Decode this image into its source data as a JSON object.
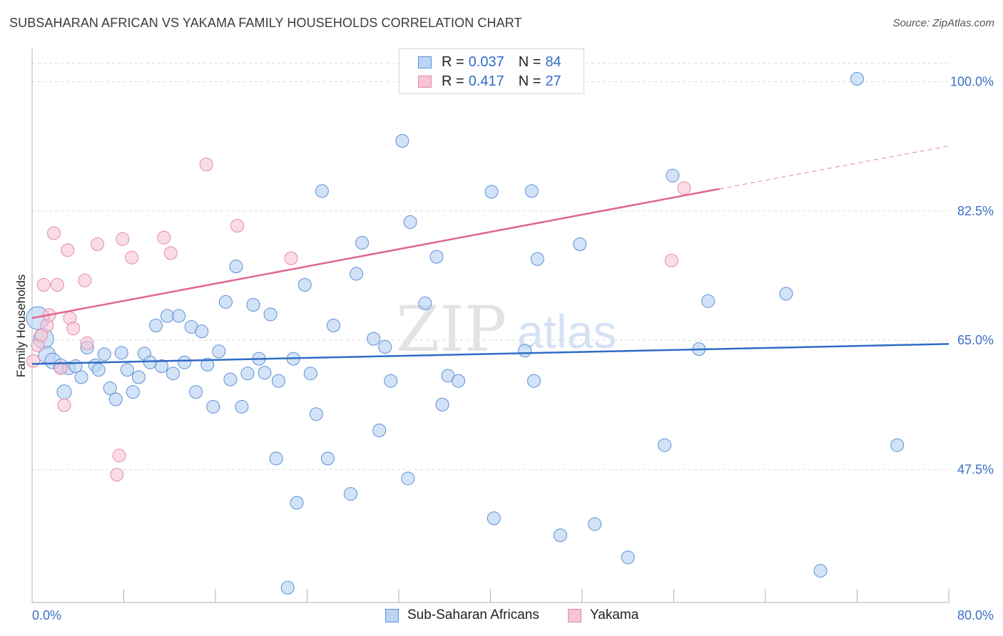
{
  "title": "SUBSAHARAN AFRICAN VS YAKAMA FAMILY HOUSEHOLDS CORRELATION CHART",
  "source": "Source: ZipAtlas.com",
  "watermark": {
    "zip": "ZIP",
    "atlas": "atlas"
  },
  "legend": {
    "r_label": "R =",
    "n_label": "N =",
    "blue": {
      "r": "0.037",
      "n": "84"
    },
    "pink": {
      "r": "0.417",
      "n": "27"
    }
  },
  "colors": {
    "blue": "#5b8fd6",
    "blue_fill": "#bcd4f3",
    "blue_line": "#2f6cc5",
    "pink": "#e48aa9",
    "pink_fill": "#f7c4d4",
    "pink_line": "#e0668f",
    "tick": "#3b6fc4",
    "grid": "#dcdcdc"
  },
  "chart_data": {
    "type": "scatter",
    "title": "SUBSAHARAN AFRICAN VS YAKAMA FAMILY HOUSEHOLDS CORRELATION CHART",
    "xlabel": "",
    "ylabel": "Family Households",
    "xlim": [
      0,
      80
    ],
    "ylim": [
      29.5,
      104.5
    ],
    "x_tick_labels": [
      "0.0%",
      "80.0%"
    ],
    "y_ticks": [
      47.5,
      65.0,
      82.5,
      100.0
    ],
    "y_tick_labels": [
      "47.5%",
      "65.0%",
      "82.5%",
      "100.0%"
    ],
    "series": [
      {
        "name": "Sub-Saharan Africans",
        "color": "blue",
        "trend": {
          "x": [
            0,
            80
          ],
          "y": [
            61.8,
            64.5
          ]
        },
        "points": [
          {
            "x": 0.5,
            "y": 68.0,
            "s": 16
          },
          {
            "x": 1.0,
            "y": 65.2,
            "s": 14
          },
          {
            "x": 1.3,
            "y": 63.0,
            "s": 12
          },
          {
            "x": 1.8,
            "y": 62.2,
            "s": 11
          },
          {
            "x": 2.5,
            "y": 61.5,
            "s": 10
          },
          {
            "x": 2.8,
            "y": 58.0,
            "s": 10
          },
          {
            "x": 3.2,
            "y": 61.2,
            "s": 9
          },
          {
            "x": 3.8,
            "y": 61.5,
            "s": 9
          },
          {
            "x": 4.3,
            "y": 60.0,
            "s": 9
          },
          {
            "x": 4.8,
            "y": 64.0,
            "s": 9
          },
          {
            "x": 5.5,
            "y": 61.6,
            "s": 9
          },
          {
            "x": 5.8,
            "y": 61.0,
            "s": 9
          },
          {
            "x": 6.3,
            "y": 63.1,
            "s": 9
          },
          {
            "x": 6.8,
            "y": 58.5,
            "s": 9
          },
          {
            "x": 7.3,
            "y": 57.0,
            "s": 9
          },
          {
            "x": 7.8,
            "y": 63.3,
            "s": 9
          },
          {
            "x": 8.3,
            "y": 61.0,
            "s": 9
          },
          {
            "x": 8.8,
            "y": 58.0,
            "s": 9
          },
          {
            "x": 9.3,
            "y": 60.0,
            "s": 9
          },
          {
            "x": 9.8,
            "y": 63.2,
            "s": 9
          },
          {
            "x": 10.3,
            "y": 62.0,
            "s": 9
          },
          {
            "x": 10.8,
            "y": 67.0,
            "s": 9
          },
          {
            "x": 11.3,
            "y": 61.5,
            "s": 9
          },
          {
            "x": 11.8,
            "y": 68.3,
            "s": 9
          },
          {
            "x": 12.3,
            "y": 60.5,
            "s": 9
          },
          {
            "x": 12.8,
            "y": 68.3,
            "s": 9
          },
          {
            "x": 13.3,
            "y": 62.0,
            "s": 9
          },
          {
            "x": 13.9,
            "y": 66.8,
            "s": 9
          },
          {
            "x": 14.3,
            "y": 58.0,
            "s": 9
          },
          {
            "x": 14.8,
            "y": 66.2,
            "s": 9
          },
          {
            "x": 15.3,
            "y": 61.7,
            "s": 9
          },
          {
            "x": 15.8,
            "y": 56.0,
            "s": 9
          },
          {
            "x": 16.3,
            "y": 63.5,
            "s": 9
          },
          {
            "x": 16.9,
            "y": 70.2,
            "s": 9
          },
          {
            "x": 17.3,
            "y": 59.7,
            "s": 9
          },
          {
            "x": 17.8,
            "y": 75.0,
            "s": 9
          },
          {
            "x": 18.3,
            "y": 56.0,
            "s": 9
          },
          {
            "x": 18.8,
            "y": 60.5,
            "s": 9
          },
          {
            "x": 19.3,
            "y": 69.8,
            "s": 9
          },
          {
            "x": 19.8,
            "y": 62.5,
            "s": 9
          },
          {
            "x": 20.3,
            "y": 60.6,
            "s": 9
          },
          {
            "x": 20.8,
            "y": 68.5,
            "s": 9
          },
          {
            "x": 21.5,
            "y": 59.5,
            "s": 9
          },
          {
            "x": 21.3,
            "y": 49.0,
            "s": 9
          },
          {
            "x": 22.3,
            "y": 31.5,
            "s": 9
          },
          {
            "x": 22.8,
            "y": 62.5,
            "s": 9
          },
          {
            "x": 23.1,
            "y": 43.0,
            "s": 9
          },
          {
            "x": 23.8,
            "y": 72.5,
            "s": 9
          },
          {
            "x": 24.3,
            "y": 60.5,
            "s": 9
          },
          {
            "x": 24.8,
            "y": 55.0,
            "s": 9
          },
          {
            "x": 25.3,
            "y": 85.2,
            "s": 9
          },
          {
            "x": 25.8,
            "y": 49.0,
            "s": 9
          },
          {
            "x": 26.3,
            "y": 67.0,
            "s": 9
          },
          {
            "x": 27.8,
            "y": 44.2,
            "s": 9
          },
          {
            "x": 28.3,
            "y": 74.0,
            "s": 9
          },
          {
            "x": 28.8,
            "y": 78.2,
            "s": 9
          },
          {
            "x": 29.8,
            "y": 65.2,
            "s": 9
          },
          {
            "x": 30.3,
            "y": 52.8,
            "s": 9
          },
          {
            "x": 30.8,
            "y": 64.1,
            "s": 9
          },
          {
            "x": 31.3,
            "y": 59.5,
            "s": 9
          },
          {
            "x": 32.3,
            "y": 92.0,
            "s": 9
          },
          {
            "x": 32.8,
            "y": 46.3,
            "s": 9
          },
          {
            "x": 33.0,
            "y": 81.0,
            "s": 9
          },
          {
            "x": 34.3,
            "y": 70.0,
            "s": 9
          },
          {
            "x": 35.3,
            "y": 76.3,
            "s": 9
          },
          {
            "x": 35.8,
            "y": 56.3,
            "s": 9
          },
          {
            "x": 36.3,
            "y": 60.2,
            "s": 9
          },
          {
            "x": 37.2,
            "y": 59.5,
            "s": 9
          },
          {
            "x": 40.1,
            "y": 85.1,
            "s": 9
          },
          {
            "x": 40.3,
            "y": 40.9,
            "s": 9
          },
          {
            "x": 43.0,
            "y": 63.6,
            "s": 9
          },
          {
            "x": 44.1,
            "y": 76.0,
            "s": 9
          },
          {
            "x": 43.8,
            "y": 59.5,
            "s": 9
          },
          {
            "x": 43.6,
            "y": 85.2,
            "s": 9
          },
          {
            "x": 46.1,
            "y": 38.6,
            "s": 9
          },
          {
            "x": 47.8,
            "y": 78.0,
            "s": 9
          },
          {
            "x": 49.1,
            "y": 40.1,
            "s": 9
          },
          {
            "x": 52.0,
            "y": 35.6,
            "s": 9
          },
          {
            "x": 55.2,
            "y": 50.8,
            "s": 9
          },
          {
            "x": 55.9,
            "y": 87.3,
            "s": 9
          },
          {
            "x": 58.2,
            "y": 63.8,
            "s": 9
          },
          {
            "x": 59.0,
            "y": 70.3,
            "s": 9
          },
          {
            "x": 65.8,
            "y": 71.3,
            "s": 9
          },
          {
            "x": 68.8,
            "y": 33.8,
            "s": 9
          },
          {
            "x": 72.0,
            "y": 100.4,
            "s": 9
          },
          {
            "x": 75.5,
            "y": 50.8,
            "s": 9
          }
        ]
      },
      {
        "name": "Yakama",
        "color": "pink",
        "trend": {
          "x": [
            0,
            60
          ],
          "y": [
            68.0,
            85.5
          ]
        },
        "trend_dashed": {
          "x": [
            60,
            80
          ],
          "y": [
            85.5,
            91.3
          ]
        },
        "points": [
          {
            "x": 0.1,
            "y": 62.2,
            "s": 9
          },
          {
            "x": 0.5,
            "y": 64.3,
            "s": 9
          },
          {
            "x": 0.8,
            "y": 65.7,
            "s": 9
          },
          {
            "x": 1.0,
            "y": 72.5,
            "s": 9
          },
          {
            "x": 1.3,
            "y": 67.0,
            "s": 9
          },
          {
            "x": 1.5,
            "y": 68.4,
            "s": 9
          },
          {
            "x": 1.9,
            "y": 79.5,
            "s": 9
          },
          {
            "x": 2.2,
            "y": 72.5,
            "s": 9
          },
          {
            "x": 2.5,
            "y": 61.2,
            "s": 9
          },
          {
            "x": 2.8,
            "y": 56.2,
            "s": 9
          },
          {
            "x": 3.1,
            "y": 77.2,
            "s": 9
          },
          {
            "x": 3.3,
            "y": 68.0,
            "s": 9
          },
          {
            "x": 3.6,
            "y": 66.6,
            "s": 9
          },
          {
            "x": 4.6,
            "y": 73.1,
            "s": 9
          },
          {
            "x": 4.8,
            "y": 64.6,
            "s": 9
          },
          {
            "x": 5.7,
            "y": 78.0,
            "s": 9
          },
          {
            "x": 7.4,
            "y": 46.8,
            "s": 9
          },
          {
            "x": 7.6,
            "y": 49.4,
            "s": 9
          },
          {
            "x": 7.9,
            "y": 78.7,
            "s": 9
          },
          {
            "x": 8.7,
            "y": 76.2,
            "s": 9
          },
          {
            "x": 11.5,
            "y": 78.9,
            "s": 9
          },
          {
            "x": 12.1,
            "y": 76.8,
            "s": 9
          },
          {
            "x": 15.2,
            "y": 88.8,
            "s": 9
          },
          {
            "x": 17.9,
            "y": 80.5,
            "s": 9
          },
          {
            "x": 22.6,
            "y": 76.1,
            "s": 9
          },
          {
            "x": 55.8,
            "y": 75.8,
            "s": 9
          },
          {
            "x": 56.9,
            "y": 85.6,
            "s": 9
          }
        ]
      }
    ]
  }
}
